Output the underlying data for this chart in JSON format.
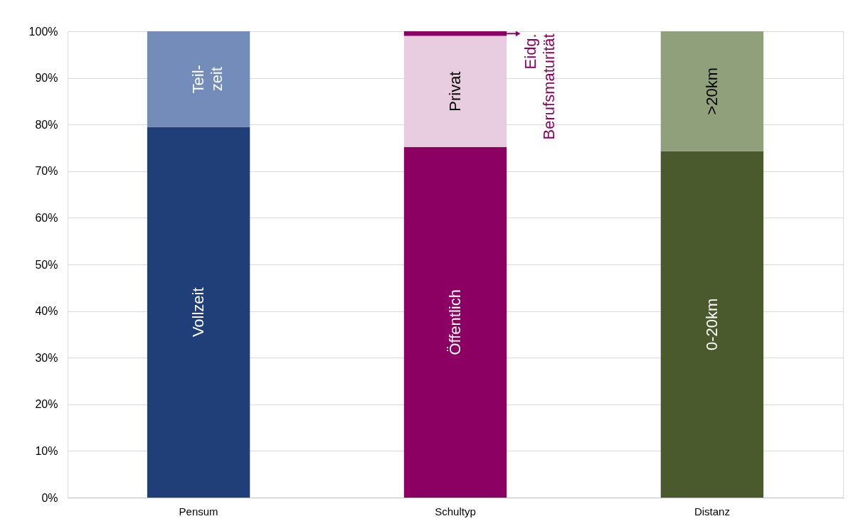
{
  "chart_data": {
    "type": "bar",
    "stacked": true,
    "categories": [
      "Pensum",
      "Schultyp",
      "Distanz"
    ],
    "series": [
      {
        "colors": [
          "#203f78",
          "#8c0063",
          "#4a5a2c"
        ],
        "values": [
          79.5,
          75.2,
          74.3
        ],
        "value_labels": [
          "Vollzeit",
          "Öffentlich",
          "0-20km"
        ]
      },
      {
        "colors": [
          "#738cba",
          "#e8cde0",
          "#8fa07a"
        ],
        "values": [
          20.5,
          23.8,
          25.7
        ],
        "value_labels": [
          "Teil-\nzeit",
          "Privat",
          ">20km"
        ]
      },
      {
        "colors": [
          null,
          "#8c0063",
          null
        ],
        "values": [
          null,
          1.0,
          null
        ],
        "value_labels": [
          null,
          "Eidg.\nBerufsmaturität",
          null
        ]
      }
    ],
    "ylim": [
      0,
      100
    ],
    "yticks": [
      {
        "value": 0,
        "label": "0%"
      },
      {
        "value": 10,
        "label": "10%"
      },
      {
        "value": 20,
        "label": "20%"
      },
      {
        "value": 30,
        "label": "30%"
      },
      {
        "value": 40,
        "label": "40%"
      },
      {
        "value": 50,
        "label": "50%"
      },
      {
        "value": 60,
        "label": "60%"
      },
      {
        "value": 70,
        "label": "70%"
      },
      {
        "value": 80,
        "label": "80%"
      },
      {
        "value": 90,
        "label": "90%"
      },
      {
        "value": 100,
        "label": "100%"
      }
    ],
    "grid": "y"
  }
}
